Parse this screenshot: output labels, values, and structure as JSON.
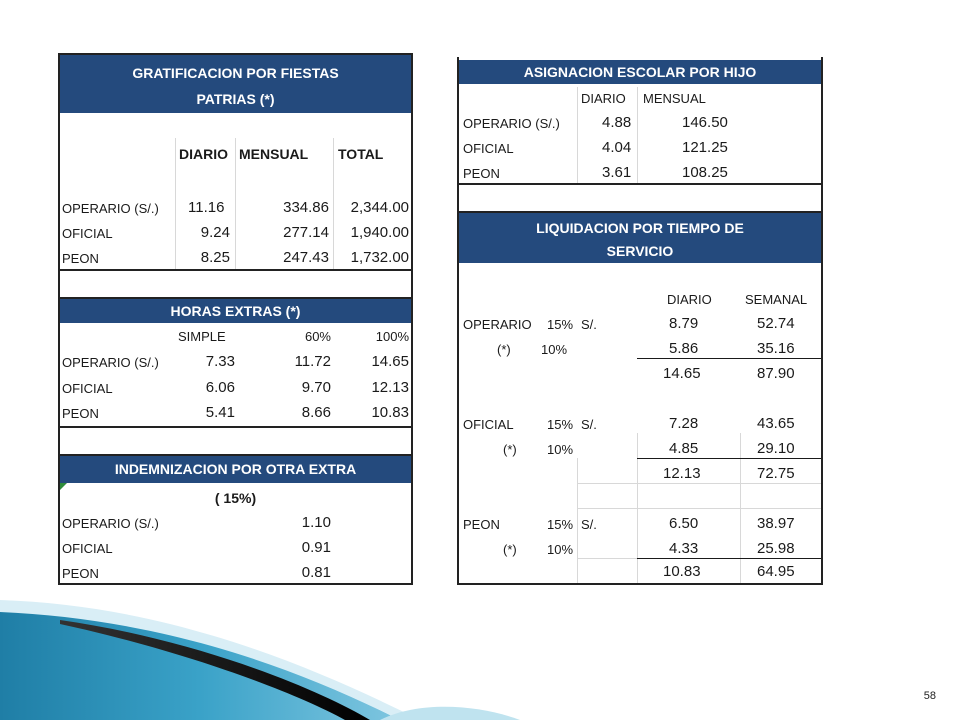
{
  "gratificacion": {
    "title_line1": "GRATIFICACION POR FIESTAS",
    "title_line2": "PATRIAS (*)",
    "col_diario": "DIARIO",
    "col_mensual": "MENSUAL",
    "col_total": "TOTAL",
    "rows": [
      {
        "label": "OPERARIO (S/.)",
        "diario": "11.16",
        "mensual": "334.86",
        "total": "2,344.00"
      },
      {
        "label": "OFICIAL",
        "diario": "9.24",
        "mensual": "277.14",
        "total": "1,940.00"
      },
      {
        "label": "PEON",
        "diario": "8.25",
        "mensual": "247.43",
        "total": "1,732.00"
      }
    ]
  },
  "horas_extras": {
    "title": "HORAS EXTRAS (*)",
    "col_simple": "SIMPLE",
    "col_60": "60%",
    "col_100": "100%",
    "rows": [
      {
        "label": "OPERARIO (S/.)",
        "simple": "7.33",
        "p60": "11.72",
        "p100": "14.65"
      },
      {
        "label": "OFICIAL",
        "simple": "6.06",
        "p60": "9.70",
        "p100": "12.13"
      },
      {
        "label": "PEON",
        "simple": "5.41",
        "p60": "8.66",
        "p100": "10.83"
      }
    ]
  },
  "indemnizacion": {
    "title": "INDEMNIZACION POR OTRA EXTRA",
    "subtitle": "( 15%)",
    "rows": [
      {
        "label": "OPERARIO (S/.)",
        "value": "1.10"
      },
      {
        "label": "OFICIAL",
        "value": "0.91"
      },
      {
        "label": "PEON",
        "value": "0.81"
      }
    ]
  },
  "asignacion": {
    "title": "ASIGNACION ESCOLAR POR HIJO",
    "col_diario": "DIARIO",
    "col_mensual": "MENSUAL",
    "rows": [
      {
        "label": "OPERARIO (S/.)",
        "diario": "4.88",
        "mensual": "146.50"
      },
      {
        "label": "OFICIAL",
        "diario": "4.04",
        "mensual": "121.25"
      },
      {
        "label": "PEON",
        "diario": "3.61",
        "mensual": "108.25"
      }
    ]
  },
  "liquidacion": {
    "title_line1": "LIQUIDACION POR TIEMPO DE",
    "title_line2": "SERVICIO",
    "col_diario": "DIARIO",
    "col_semanal": "SEMANAL",
    "groups": [
      {
        "label": "OPERARIO",
        "pct1": "15%",
        "cur": "S/.",
        "d1": "8.79",
        "s1": "52.74",
        "note": "(*)",
        "pct2": "10%",
        "d2": "5.86",
        "s2": "35.16",
        "dt": "14.65",
        "st": "87.90"
      },
      {
        "label": "OFICIAL",
        "pct1": "15%",
        "cur": "S/.",
        "d1": "7.28",
        "s1": "43.65",
        "note": "(*)",
        "pct2": "10%",
        "d2": "4.85",
        "s2": "29.10",
        "dt": "12.13",
        "st": "72.75"
      },
      {
        "label": "PEON",
        "pct1": "15%",
        "cur": "S/.",
        "d1": "6.50",
        "s1": "38.97",
        "note": "(*)",
        "pct2": "10%",
        "d2": "4.33",
        "s2": "25.98",
        "dt": "10.83",
        "st": "64.95"
      }
    ]
  },
  "page_number": "58",
  "colors": {
    "header_blue": "#244a7d",
    "decor_teal": "#2b8fb3"
  }
}
